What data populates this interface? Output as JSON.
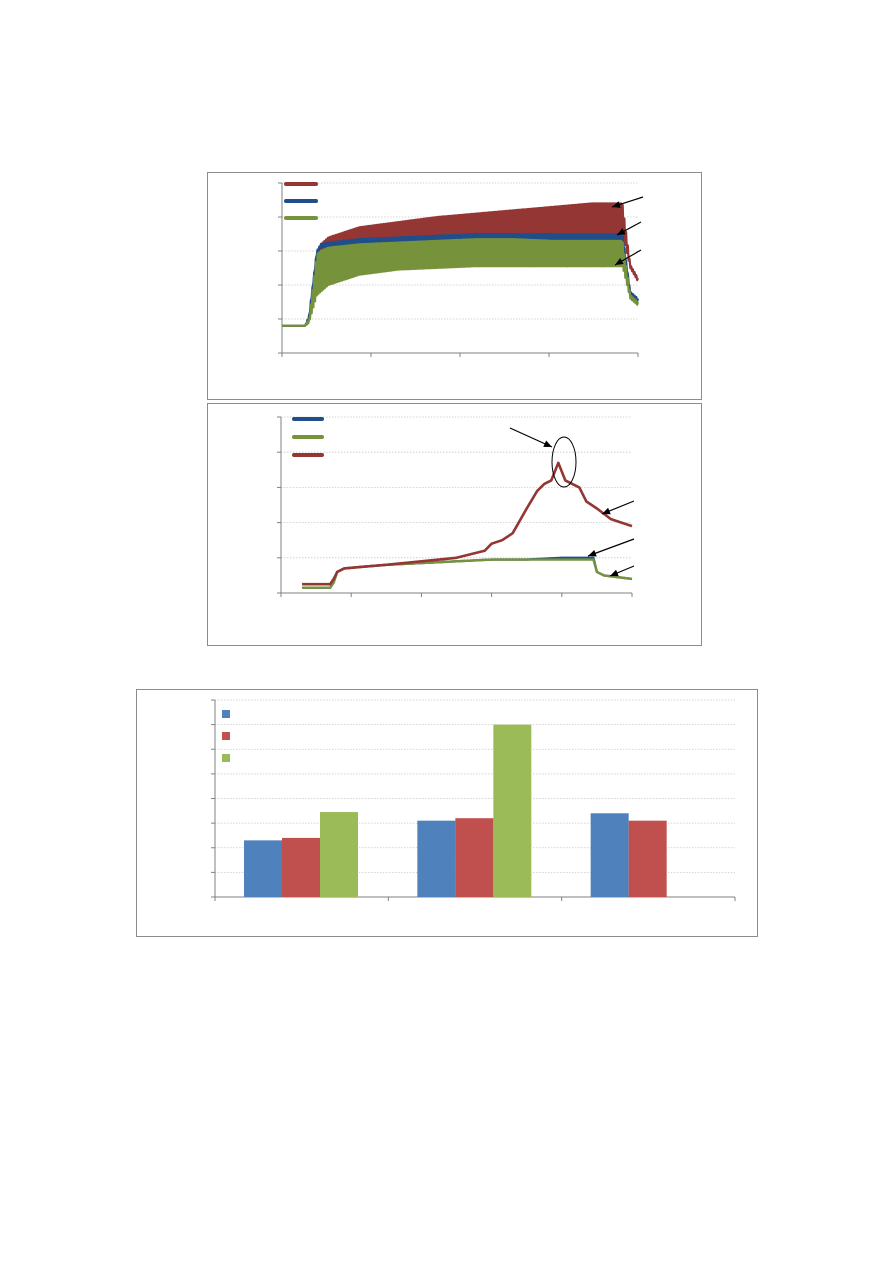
{
  "colors": {
    "red": "#943634",
    "blue": "#1f4e8a",
    "green": "#76933c",
    "bar_blue": "#4f81bd",
    "bar_red": "#c0504d",
    "bar_green": "#9bbb59",
    "grid": "#c8c8c8",
    "axis": "#808080"
  },
  "chart_data": [
    {
      "type": "line",
      "grid": true,
      "legend": "top-left",
      "ylim": [
        0,
        5
      ],
      "xlim": [
        0,
        4.6
      ],
      "series": [
        {
          "color": "red",
          "band": true,
          "x": [
            0,
            0.3,
            0.35,
            0.45,
            0.5,
            0.6,
            1,
            1.5,
            2,
            2.5,
            3,
            3.5,
            4,
            4.4,
            4.5,
            4.6
          ],
          "low": [
            0.8,
            0.8,
            0.9,
            2.6,
            3.0,
            3.1,
            3.25,
            3.35,
            3.45,
            3.5,
            3.55,
            3.55,
            3.55,
            3.55,
            2.5,
            2.1
          ],
          "high": [
            0.8,
            0.8,
            1.0,
            3.0,
            3.2,
            3.4,
            3.7,
            3.85,
            4.0,
            4.1,
            4.2,
            4.3,
            4.4,
            4.4,
            2.6,
            2.2
          ]
        },
        {
          "color": "blue",
          "band": true,
          "x": [
            0,
            0.3,
            0.35,
            0.45,
            0.5,
            0.6,
            1,
            1.5,
            2,
            2.5,
            3,
            3.5,
            4,
            4.4,
            4.5,
            4.6
          ],
          "low": [
            0.8,
            0.8,
            1.0,
            2.9,
            3.1,
            3.15,
            3.2,
            3.25,
            3.3,
            3.35,
            3.35,
            3.35,
            3.35,
            3.35,
            1.7,
            1.5
          ],
          "high": [
            0.8,
            0.8,
            1.1,
            3.0,
            3.2,
            3.25,
            3.35,
            3.4,
            3.45,
            3.5,
            3.5,
            3.5,
            3.5,
            3.5,
            1.8,
            1.6
          ]
        },
        {
          "color": "green",
          "band": true,
          "x": [
            0,
            0.3,
            0.35,
            0.45,
            0.5,
            0.6,
            1,
            1.5,
            2,
            2.5,
            3,
            3.5,
            4,
            4.4,
            4.5,
            4.6
          ],
          "low": [
            0.8,
            0.8,
            0.9,
            1.7,
            1.8,
            2.0,
            2.3,
            2.45,
            2.5,
            2.55,
            2.55,
            2.55,
            2.55,
            2.55,
            1.6,
            1.4
          ],
          "high": [
            0.8,
            0.8,
            1.0,
            2.9,
            3.0,
            3.1,
            3.2,
            3.25,
            3.3,
            3.35,
            3.35,
            3.3,
            3.3,
            3.3,
            1.7,
            1.5
          ]
        }
      ]
    },
    {
      "type": "line",
      "grid": true,
      "legend": "top-left",
      "ylim": [
        0,
        5
      ],
      "xlim": [
        0,
        5
      ],
      "series": [
        {
          "color": "blue",
          "x": [
            0.3,
            0.7,
            0.75,
            0.8,
            0.9,
            1.2,
            1.5,
            2,
            2.5,
            3,
            3.5,
            4,
            4.45,
            4.5,
            4.6,
            4.8,
            5
          ],
          "y": [
            0.15,
            0.15,
            0.3,
            0.6,
            0.7,
            0.75,
            0.8,
            0.85,
            0.9,
            0.95,
            0.95,
            1.0,
            1.0,
            0.6,
            0.5,
            0.45,
            0.4
          ]
        },
        {
          "color": "green",
          "x": [
            0.3,
            0.7,
            0.75,
            0.8,
            0.9,
            1.2,
            1.5,
            2,
            2.5,
            3,
            3.5,
            4,
            4.45,
            4.5,
            4.6,
            4.8,
            5
          ],
          "y": [
            0.15,
            0.15,
            0.3,
            0.6,
            0.7,
            0.75,
            0.8,
            0.85,
            0.9,
            0.95,
            0.95,
            0.95,
            0.95,
            0.6,
            0.5,
            0.45,
            0.4
          ]
        },
        {
          "color": "red",
          "x": [
            0.3,
            0.7,
            0.75,
            0.8,
            0.9,
            1.2,
            1.5,
            2,
            2.5,
            2.7,
            2.9,
            3.0,
            3.15,
            3.3,
            3.5,
            3.65,
            3.75,
            3.85,
            3.95,
            4.05,
            4.15,
            4.25,
            4.35,
            4.5,
            4.7,
            5
          ],
          "y": [
            0.25,
            0.25,
            0.4,
            0.6,
            0.7,
            0.75,
            0.8,
            0.9,
            1.0,
            1.1,
            1.2,
            1.4,
            1.5,
            1.7,
            2.4,
            2.9,
            3.1,
            3.2,
            3.7,
            3.2,
            3.1,
            3.0,
            2.6,
            2.4,
            2.1,
            1.9
          ]
        }
      ]
    },
    {
      "type": "bar",
      "grid": true,
      "legend": "top-left",
      "ylim": [
        0,
        8
      ],
      "groups": 3,
      "series": [
        {
          "color": "bar_blue",
          "values": [
            2.3,
            3.1,
            3.4
          ]
        },
        {
          "color": "bar_red",
          "values": [
            2.4,
            3.2,
            3.1
          ]
        },
        {
          "color": "bar_green",
          "values": [
            3.45,
            7.0,
            null
          ]
        }
      ]
    }
  ]
}
